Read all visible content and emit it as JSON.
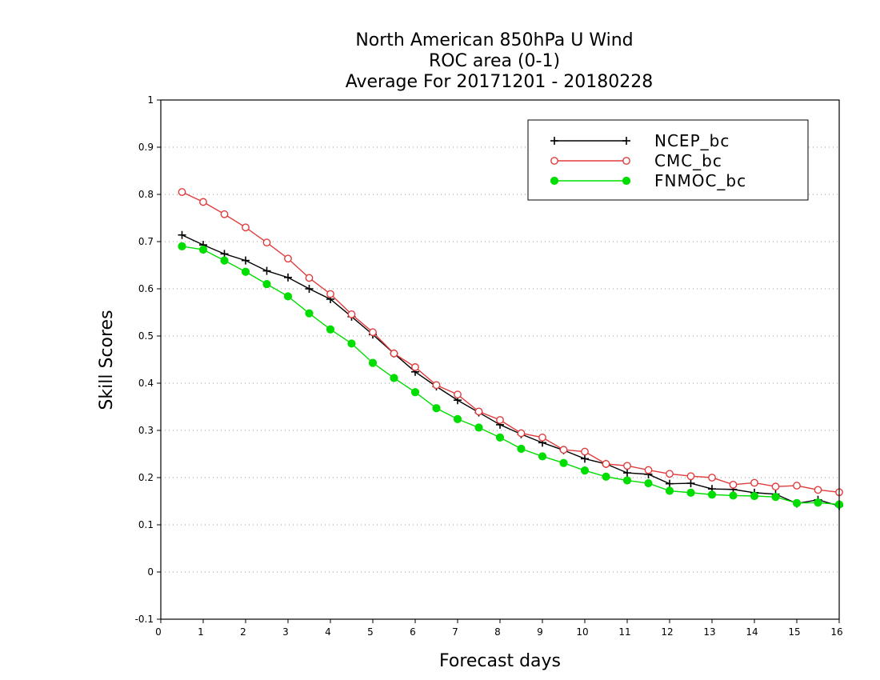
{
  "chart_data": {
    "type": "line",
    "title": [
      "North American 850hPa U Wind",
      "ROC area (0-1)",
      "Average For 20171201 - 20180228"
    ],
    "xlabel": "Forecast days",
    "ylabel": "Skill Scores",
    "xlim": [
      0,
      16
    ],
    "ylim": [
      -0.1,
      1
    ],
    "xticks": [
      "0",
      "1",
      "2",
      "3",
      "4",
      "5",
      "6",
      "7",
      "8",
      "9",
      "10",
      "11",
      "12",
      "13",
      "14",
      "15",
      "16"
    ],
    "yticks": [
      "-0.1",
      "0",
      "0.1",
      "0.2",
      "0.3",
      "0.4",
      "0.5",
      "0.6",
      "0.7",
      "0.8",
      "0.9",
      "1"
    ],
    "grid": "horizontal dotted",
    "legend_position": "top-right",
    "x": [
      0.5,
      1,
      1.5,
      2,
      2.5,
      3,
      3.5,
      4,
      4.5,
      5,
      5.5,
      6,
      6.5,
      7,
      7.5,
      8,
      8.5,
      9,
      9.5,
      10,
      10.5,
      11,
      11.5,
      12,
      12.5,
      13,
      13.5,
      14,
      14.5,
      15,
      15.5,
      16
    ],
    "series": [
      {
        "name": "NCEP_bc",
        "color": "#000000",
        "marker": "plus",
        "values": [
          0.714,
          0.693,
          0.674,
          0.66,
          0.638,
          0.624,
          0.6,
          0.578,
          0.541,
          0.503,
          0.463,
          0.424,
          0.393,
          0.364,
          0.338,
          0.312,
          0.292,
          0.274,
          0.258,
          0.24,
          0.229,
          0.21,
          0.207,
          0.187,
          0.188,
          0.176,
          0.175,
          0.168,
          0.165,
          0.145,
          0.153,
          0.14
        ]
      },
      {
        "name": "CMC_bc",
        "color": "#e03c3c",
        "marker": "open-circle",
        "values": [
          0.805,
          0.784,
          0.758,
          0.73,
          0.698,
          0.664,
          0.623,
          0.589,
          0.546,
          0.508,
          0.463,
          0.434,
          0.396,
          0.376,
          0.34,
          0.322,
          0.294,
          0.285,
          0.259,
          0.255,
          0.229,
          0.225,
          0.216,
          0.208,
          0.203,
          0.2,
          0.185,
          0.189,
          0.181,
          0.183,
          0.174,
          0.169
        ]
      },
      {
        "name": "FNMOC_bc",
        "color": "#00dd00",
        "marker": "filled-circle",
        "values": [
          0.69,
          0.683,
          0.66,
          0.636,
          0.61,
          0.584,
          0.548,
          0.514,
          0.484,
          0.443,
          0.411,
          0.381,
          0.347,
          0.324,
          0.306,
          0.285,
          0.261,
          0.245,
          0.231,
          0.215,
          0.202,
          0.194,
          0.188,
          0.172,
          0.168,
          0.164,
          0.162,
          0.161,
          0.159,
          0.146,
          0.147,
          0.143
        ]
      }
    ]
  }
}
